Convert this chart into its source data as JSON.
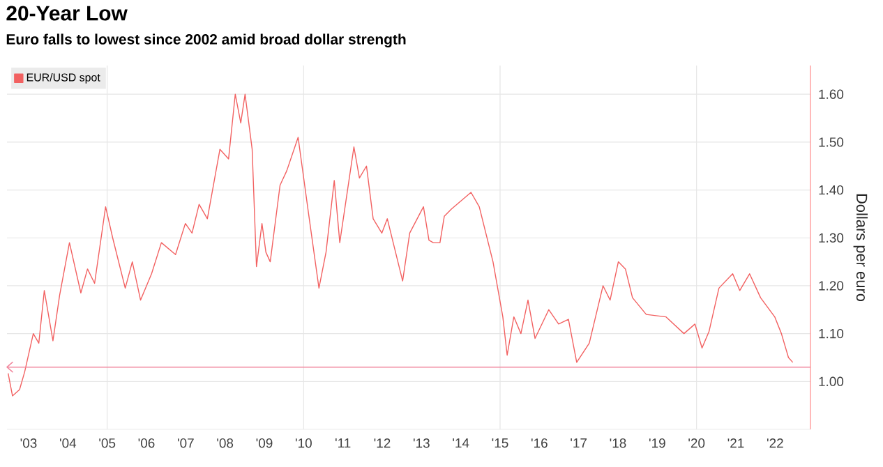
{
  "chart_data": {
    "type": "line",
    "title": "20-Year Low",
    "subtitle": "Euro falls to lowest since 2002 amid broad dollar strength",
    "ylabel": "Dollars per euro",
    "x": [
      2002.48,
      2002.59,
      2002.77,
      2002.9,
      2003.12,
      2003.26,
      2003.4,
      2003.62,
      2003.79,
      2004.04,
      2004.33,
      2004.5,
      2004.68,
      2004.96,
      2005.14,
      2005.46,
      2005.64,
      2005.85,
      2006.13,
      2006.38,
      2006.74,
      2006.99,
      2007.16,
      2007.34,
      2007.55,
      2007.87,
      2008.09,
      2008.26,
      2008.4,
      2008.51,
      2008.69,
      2008.8,
      2008.94,
      2009.04,
      2009.15,
      2009.4,
      2009.57,
      2009.86,
      2010.11,
      2010.39,
      2010.57,
      2010.78,
      2010.92,
      2011.28,
      2011.42,
      2011.6,
      2011.77,
      2011.99,
      2012.13,
      2012.52,
      2012.7,
      2013.05,
      2013.19,
      2013.3,
      2013.47,
      2013.58,
      2013.76,
      2014.26,
      2014.47,
      2014.82,
      2015.07,
      2015.18,
      2015.35,
      2015.53,
      2015.71,
      2015.89,
      2016.24,
      2016.49,
      2016.74,
      2016.95,
      2017.27,
      2017.62,
      2017.8,
      2018.01,
      2018.19,
      2018.37,
      2018.72,
      2019.22,
      2019.68,
      2019.96,
      2020.14,
      2020.32,
      2020.57,
      2020.92,
      2021.1,
      2021.35,
      2021.63,
      2021.99,
      2022.16,
      2022.34,
      2022.45
    ],
    "series": [
      {
        "name": "EUR/USD spot",
        "color": "#f26161",
        "values": [
          1.017,
          0.97,
          0.983,
          1.02,
          1.1,
          1.08,
          1.19,
          1.085,
          1.18,
          1.29,
          1.185,
          1.235,
          1.205,
          1.365,
          1.3,
          1.195,
          1.25,
          1.17,
          1.225,
          1.29,
          1.265,
          1.33,
          1.31,
          1.37,
          1.34,
          1.485,
          1.465,
          1.6,
          1.54,
          1.6,
          1.485,
          1.24,
          1.33,
          1.27,
          1.25,
          1.41,
          1.44,
          1.51,
          1.36,
          1.195,
          1.27,
          1.42,
          1.29,
          1.49,
          1.425,
          1.45,
          1.34,
          1.31,
          1.34,
          1.21,
          1.31,
          1.365,
          1.295,
          1.29,
          1.29,
          1.345,
          1.36,
          1.395,
          1.365,
          1.25,
          1.135,
          1.055,
          1.135,
          1.1,
          1.17,
          1.09,
          1.15,
          1.12,
          1.13,
          1.04,
          1.08,
          1.2,
          1.17,
          1.25,
          1.235,
          1.175,
          1.14,
          1.135,
          1.1,
          1.12,
          1.07,
          1.105,
          1.195,
          1.225,
          1.19,
          1.225,
          1.175,
          1.135,
          1.1,
          1.05,
          1.04
        ]
      }
    ],
    "xlim": [
      2002.45,
      2022.9
    ],
    "xticks": [
      {
        "value": 2003,
        "label": "'03"
      },
      {
        "value": 2004,
        "label": "'04"
      },
      {
        "value": 2005,
        "label": "'05"
      },
      {
        "value": 2006,
        "label": "'06"
      },
      {
        "value": 2007,
        "label": "'07"
      },
      {
        "value": 2008,
        "label": "'08"
      },
      {
        "value": 2009,
        "label": "'09"
      },
      {
        "value": 2010,
        "label": "'10"
      },
      {
        "value": 2011,
        "label": "'11"
      },
      {
        "value": 2012,
        "label": "'12"
      },
      {
        "value": 2013,
        "label": "'13"
      },
      {
        "value": 2014,
        "label": "'14"
      },
      {
        "value": 2015,
        "label": "'15"
      },
      {
        "value": 2016,
        "label": "'16"
      },
      {
        "value": 2017,
        "label": "'17"
      },
      {
        "value": 2018,
        "label": "'18"
      },
      {
        "value": 2019,
        "label": "'19"
      },
      {
        "value": 2020,
        "label": "'20"
      },
      {
        "value": 2021,
        "label": "'21"
      },
      {
        "value": 2022,
        "label": "'22"
      },
      {
        "value": 2005,
        "label": null
      },
      {
        "value": 2010,
        "label": null
      },
      {
        "value": 2015,
        "label": null
      },
      {
        "value": 2020,
        "label": null
      }
    ],
    "ylim": [
      0.9,
      1.66
    ],
    "yticks": [
      {
        "value": 1.0,
        "label": "1.00"
      },
      {
        "value": 1.1,
        "label": "1.10"
      },
      {
        "value": 1.2,
        "label": "1.20"
      },
      {
        "value": 1.3,
        "label": "1.30"
      },
      {
        "value": 1.4,
        "label": "1.40"
      },
      {
        "value": 1.5,
        "label": "1.50"
      },
      {
        "value": 1.6,
        "label": "1.60"
      }
    ],
    "ref_lines": [
      {
        "axis": "y",
        "value": 1.03,
        "color": "#f28aa0"
      }
    ],
    "grid": true,
    "legend": "top left"
  }
}
